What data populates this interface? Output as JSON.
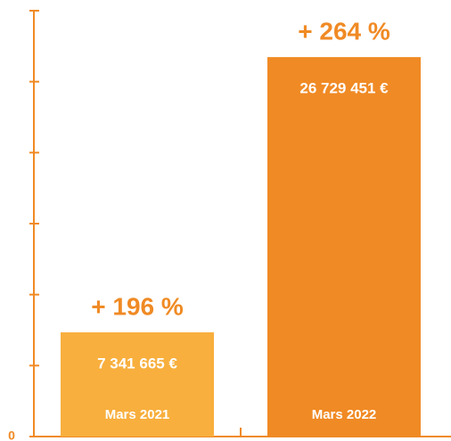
{
  "chart_data": {
    "type": "bar",
    "categories": [
      "Mars 2021",
      "Mars 2022"
    ],
    "values": [
      7341665,
      26729451
    ],
    "value_labels": [
      "7 341 665 €",
      "26 729 451 €"
    ],
    "annotations": [
      "+ 196 %",
      "+ 264 %"
    ],
    "colors": [
      "#f8af3d",
      "#f08a24"
    ],
    "axis_color": "#f08a24",
    "ylim": [
      0,
      30000000
    ],
    "yticks": [
      0
    ],
    "minor_yticks": [
      5000000,
      10000000,
      15000000,
      20000000,
      25000000,
      30000000
    ]
  }
}
